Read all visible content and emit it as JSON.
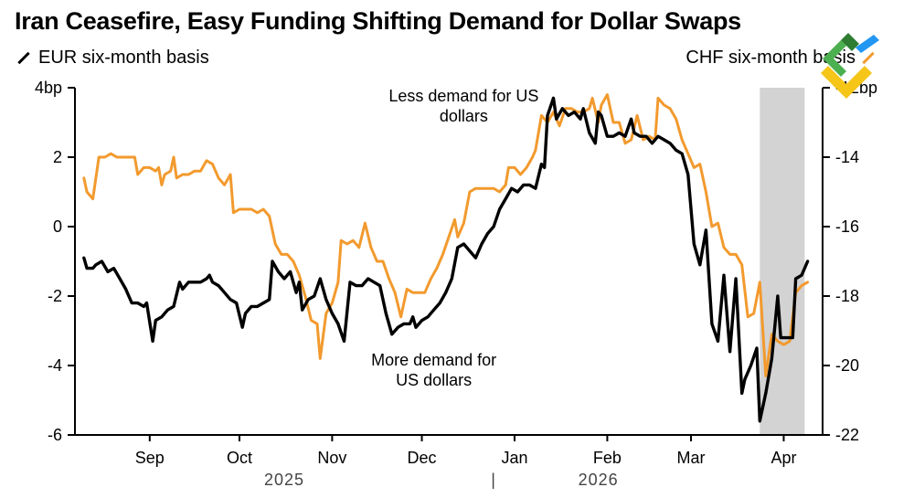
{
  "title": "Iran Ceasefire, Easy Funding Shifting Demand for Dollar Swaps",
  "legend": {
    "left": "EUR six-month basis",
    "right": "CHF six-month basis"
  },
  "colors": {
    "eur": "#000000",
    "chf": "#f29a2e",
    "shade": "#d3d3d3",
    "axis": "#000000"
  },
  "chart_data": {
    "type": "line",
    "title": "Iran Ceasefire, Easy Funding Shifting Demand for Dollar Swaps",
    "left_axis": {
      "ticks": [
        4,
        2,
        0,
        -2,
        -4,
        -6
      ],
      "tick_labels": [
        "4bp",
        "2",
        "0",
        "-2",
        "-4",
        "-6"
      ],
      "ylim": [
        -6,
        4
      ]
    },
    "right_axis": {
      "ticks": [
        -12,
        -14,
        -16,
        -18,
        -20,
        -22
      ],
      "tick_labels": [
        "-12bp",
        "-14",
        "-16",
        "-18",
        "-20",
        "-22"
      ],
      "ylim": [
        -22,
        -12
      ]
    },
    "x_labels": [
      "Sep",
      "Oct",
      "Nov",
      "Dec",
      "Jan",
      "Feb",
      "Mar",
      "Apr"
    ],
    "x_label_days": [
      15,
      45,
      76,
      106,
      137,
      168,
      196,
      227
    ],
    "xlim_days": [
      -10,
      240
    ],
    "year_labels": [
      "2025",
      "|",
      "2026"
    ],
    "year_label_days": [
      60,
      130,
      165
    ],
    "shaded_region_days": [
      219,
      234
    ],
    "annotations": [
      {
        "lines": [
          "Less demand for US",
          "dollars"
        ],
        "day": 120,
        "value": 3.6,
        "axis": "left"
      },
      {
        "lines": [
          "More demand for",
          "US dollars"
        ],
        "day": 110,
        "value": -4.0,
        "axis": "left"
      }
    ],
    "series": [
      {
        "name": "EUR six-month basis",
        "axis": "left",
        "color": "#000000",
        "points": [
          [
            -7,
            -0.9
          ],
          [
            -6,
            -1.2
          ],
          [
            -4,
            -1.2
          ],
          [
            -3,
            -1.1
          ],
          [
            -1,
            -1.0
          ],
          [
            1,
            -1.3
          ],
          [
            3,
            -1.2
          ],
          [
            5,
            -1.5
          ],
          [
            7,
            -1.8
          ],
          [
            9,
            -2.2
          ],
          [
            11,
            -2.2
          ],
          [
            13,
            -2.3
          ],
          [
            14,
            -2.2
          ],
          [
            16,
            -3.3
          ],
          [
            17,
            -2.7
          ],
          [
            19,
            -2.6
          ],
          [
            21,
            -2.4
          ],
          [
            23,
            -2.3
          ],
          [
            25,
            -1.6
          ],
          [
            26,
            -1.8
          ],
          [
            28,
            -1.6
          ],
          [
            30,
            -1.6
          ],
          [
            32,
            -1.6
          ],
          [
            34,
            -1.5
          ],
          [
            35,
            -1.4
          ],
          [
            36,
            -1.6
          ],
          [
            38,
            -1.7
          ],
          [
            40,
            -1.9
          ],
          [
            42,
            -2.1
          ],
          [
            44,
            -2.2
          ],
          [
            46,
            -2.9
          ],
          [
            47,
            -2.5
          ],
          [
            49,
            -2.3
          ],
          [
            51,
            -2.3
          ],
          [
            53,
            -2.2
          ],
          [
            55,
            -2.1
          ],
          [
            56,
            -1.0
          ],
          [
            58,
            -1.3
          ],
          [
            60,
            -1.5
          ],
          [
            62,
            -1.3
          ],
          [
            64,
            -1.9
          ],
          [
            65,
            -1.6
          ],
          [
            66,
            -2.4
          ],
          [
            68,
            -2.1
          ],
          [
            70,
            -2.0
          ],
          [
            72,
            -1.5
          ],
          [
            74,
            -2.1
          ],
          [
            76,
            -2.5
          ],
          [
            78,
            -2.8
          ],
          [
            80,
            -3.3
          ],
          [
            82,
            -1.6
          ],
          [
            84,
            -1.7
          ],
          [
            86,
            -1.7
          ],
          [
            88,
            -1.5
          ],
          [
            90,
            -1.6
          ],
          [
            92,
            -1.7
          ],
          [
            94,
            -2.5
          ],
          [
            96,
            -3.1
          ],
          [
            98,
            -2.9
          ],
          [
            100,
            -2.8
          ],
          [
            102,
            -2.8
          ],
          [
            103,
            -2.6
          ],
          [
            104,
            -2.9
          ],
          [
            106,
            -2.7
          ],
          [
            108,
            -2.6
          ],
          [
            110,
            -2.4
          ],
          [
            112,
            -2.2
          ],
          [
            114,
            -1.9
          ],
          [
            116,
            -1.5
          ],
          [
            118,
            -0.6
          ],
          [
            120,
            -0.5
          ],
          [
            122,
            -0.7
          ],
          [
            124,
            -0.9
          ],
          [
            126,
            -0.5
          ],
          [
            128,
            -0.2
          ],
          [
            130,
            0.0
          ],
          [
            132,
            0.5
          ],
          [
            134,
            0.8
          ],
          [
            136,
            1.1
          ],
          [
            138,
            1.0
          ],
          [
            140,
            1.2
          ],
          [
            142,
            1.2
          ],
          [
            144,
            1.1
          ],
          [
            146,
            1.8
          ],
          [
            147,
            1.7
          ],
          [
            148,
            3.2
          ],
          [
            150,
            3.7
          ],
          [
            151,
            3.1
          ],
          [
            153,
            3.4
          ],
          [
            155,
            3.2
          ],
          [
            157,
            3.3
          ],
          [
            159,
            3.1
          ],
          [
            160,
            3.4
          ],
          [
            162,
            2.7
          ],
          [
            164,
            2.4
          ],
          [
            165,
            3.3
          ],
          [
            166,
            3.2
          ],
          [
            168,
            2.6
          ],
          [
            170,
            2.6
          ],
          [
            172,
            2.7
          ],
          [
            174,
            2.6
          ],
          [
            176,
            3.1
          ],
          [
            177,
            2.7
          ],
          [
            179,
            2.6
          ],
          [
            181,
            2.6
          ],
          [
            183,
            2.4
          ],
          [
            185,
            2.6
          ],
          [
            187,
            2.5
          ],
          [
            189,
            2.4
          ],
          [
            191,
            2.2
          ],
          [
            193,
            2.1
          ],
          [
            195,
            1.5
          ],
          [
            197,
            -0.5
          ],
          [
            199,
            -1.1
          ],
          [
            201,
            -0.1
          ],
          [
            203,
            -2.8
          ],
          [
            205,
            -3.3
          ],
          [
            207,
            -1.4
          ],
          [
            209,
            -3.6
          ],
          [
            211,
            -1.5
          ],
          [
            213,
            -4.8
          ],
          [
            214,
            -4.4
          ],
          [
            216,
            -4.0
          ],
          [
            218,
            -3.5
          ],
          [
            219,
            -5.6
          ],
          [
            221,
            -4.8
          ],
          [
            223,
            -3.8
          ],
          [
            225,
            -2.0
          ],
          [
            226,
            -3.2
          ],
          [
            228,
            -3.2
          ],
          [
            230,
            -3.2
          ],
          [
            231,
            -1.5
          ],
          [
            233,
            -1.4
          ],
          [
            235,
            -1.0
          ]
        ]
      },
      {
        "name": "CHF six-month basis",
        "axis": "right",
        "color": "#f29a2e",
        "points": [
          [
            -7,
            -14.6
          ],
          [
            -6,
            -15.0
          ],
          [
            -4,
            -15.2
          ],
          [
            -2,
            -14.0
          ],
          [
            0,
            -14.0
          ],
          [
            2,
            -13.9
          ],
          [
            4,
            -14.0
          ],
          [
            6,
            -14.0
          ],
          [
            8,
            -14.0
          ],
          [
            10,
            -14.0
          ],
          [
            11,
            -14.5
          ],
          [
            13,
            -14.3
          ],
          [
            15,
            -14.3
          ],
          [
            17,
            -14.4
          ],
          [
            18,
            -14.3
          ],
          [
            19,
            -14.8
          ],
          [
            20,
            -14.5
          ],
          [
            22,
            -14.4
          ],
          [
            23,
            -14.0
          ],
          [
            24,
            -14.6
          ],
          [
            26,
            -14.5
          ],
          [
            28,
            -14.5
          ],
          [
            30,
            -14.4
          ],
          [
            32,
            -14.4
          ],
          [
            34,
            -14.1
          ],
          [
            36,
            -14.2
          ],
          [
            38,
            -14.6
          ],
          [
            40,
            -14.8
          ],
          [
            42,
            -14.5
          ],
          [
            43,
            -15.6
          ],
          [
            45,
            -15.5
          ],
          [
            47,
            -15.5
          ],
          [
            49,
            -15.5
          ],
          [
            51,
            -15.6
          ],
          [
            53,
            -15.5
          ],
          [
            55,
            -15.7
          ],
          [
            57,
            -16.5
          ],
          [
            59,
            -16.8
          ],
          [
            61,
            -16.8
          ],
          [
            63,
            -17.0
          ],
          [
            65,
            -17.4
          ],
          [
            67,
            -18.0
          ],
          [
            69,
            -18.7
          ],
          [
            71,
            -18.8
          ],
          [
            72,
            -19.8
          ],
          [
            74,
            -18.5
          ],
          [
            76,
            -18.2
          ],
          [
            78,
            -17.6
          ],
          [
            79,
            -16.4
          ],
          [
            81,
            -16.5
          ],
          [
            83,
            -16.4
          ],
          [
            85,
            -16.6
          ],
          [
            87,
            -15.9
          ],
          [
            89,
            -16.6
          ],
          [
            91,
            -17.0
          ],
          [
            93,
            -17.0
          ],
          [
            95,
            -17.5
          ],
          [
            97,
            -17.9
          ],
          [
            99,
            -18.6
          ],
          [
            101,
            -17.8
          ],
          [
            103,
            -17.9
          ],
          [
            105,
            -17.9
          ],
          [
            107,
            -17.9
          ],
          [
            109,
            -17.5
          ],
          [
            111,
            -17.2
          ],
          [
            113,
            -16.8
          ],
          [
            115,
            -16.3
          ],
          [
            117,
            -15.8
          ],
          [
            118,
            -16.3
          ],
          [
            120,
            -15.9
          ],
          [
            122,
            -15.0
          ],
          [
            124,
            -14.9
          ],
          [
            126,
            -14.9
          ],
          [
            128,
            -14.9
          ],
          [
            130,
            -14.9
          ],
          [
            132,
            -15.0
          ],
          [
            134,
            -14.8
          ],
          [
            135,
            -14.3
          ],
          [
            137,
            -14.3
          ],
          [
            139,
            -14.5
          ],
          [
            141,
            -14.3
          ],
          [
            143,
            -14.0
          ],
          [
            144,
            -13.8
          ],
          [
            146,
            -12.8
          ],
          [
            148,
            -13.0
          ],
          [
            150,
            -12.7
          ],
          [
            152,
            -13.1
          ],
          [
            154,
            -12.6
          ],
          [
            156,
            -12.6
          ],
          [
            158,
            -12.7
          ],
          [
            160,
            -12.7
          ],
          [
            162,
            -12.6
          ],
          [
            163,
            -12.3
          ],
          [
            165,
            -13.0
          ],
          [
            166,
            -12.5
          ],
          [
            168,
            -12.2
          ],
          [
            170,
            -13.0
          ],
          [
            172,
            -13.0
          ],
          [
            174,
            -13.6
          ],
          [
            176,
            -13.5
          ],
          [
            178,
            -12.8
          ],
          [
            180,
            -13.5
          ],
          [
            182,
            -13.4
          ],
          [
            184,
            -13.5
          ],
          [
            185,
            -12.3
          ],
          [
            187,
            -12.5
          ],
          [
            189,
            -12.6
          ],
          [
            191,
            -12.9
          ],
          [
            193,
            -13.5
          ],
          [
            195,
            -13.9
          ],
          [
            197,
            -14.3
          ],
          [
            199,
            -14.2
          ],
          [
            201,
            -15.0
          ],
          [
            203,
            -16.0
          ],
          [
            205,
            -15.9
          ],
          [
            207,
            -16.6
          ],
          [
            209,
            -16.8
          ],
          [
            211,
            -16.8
          ],
          [
            213,
            -17.1
          ],
          [
            215,
            -18.6
          ],
          [
            217,
            -18.5
          ],
          [
            219,
            -17.6
          ],
          [
            221,
            -20.3
          ],
          [
            223,
            -19.1
          ],
          [
            225,
            -19.3
          ],
          [
            227,
            -19.4
          ],
          [
            229,
            -19.3
          ],
          [
            231,
            -17.9
          ],
          [
            233,
            -17.7
          ],
          [
            235,
            -17.6
          ]
        ]
      }
    ]
  }
}
